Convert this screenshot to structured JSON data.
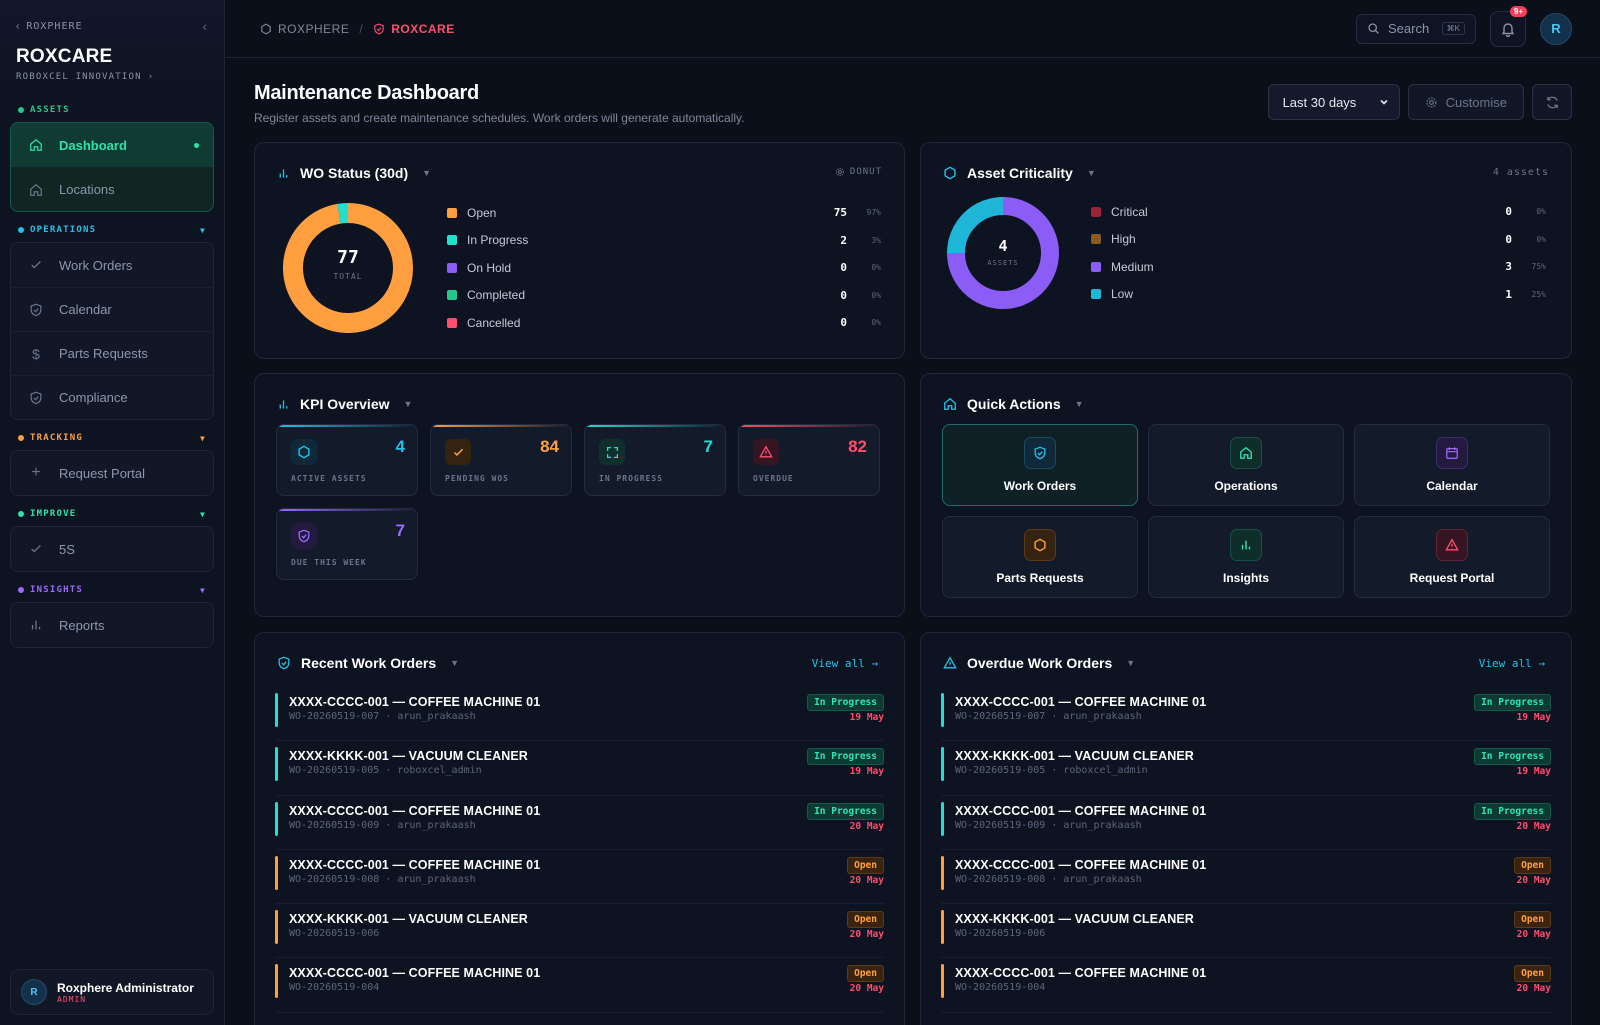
{
  "sidebar": {
    "back_label": "ROXPHERE",
    "brand": "ROXCARE",
    "org": "ROBOXCEL INNOVATION",
    "sections": {
      "assets": {
        "label": "ASSETS",
        "color": "#22c98a",
        "items": [
          {
            "label": "Dashboard"
          },
          {
            "label": "Locations"
          }
        ]
      },
      "operations": {
        "label": "OPERATIONS",
        "color": "#22c1e8",
        "items": [
          {
            "label": "Work Orders"
          },
          {
            "label": "Calendar"
          },
          {
            "label": "Parts Requests"
          },
          {
            "label": "Compliance"
          }
        ]
      },
      "tracking": {
        "label": "TRACKING",
        "color": "#ff9f40",
        "items": [
          {
            "label": "Request Portal"
          }
        ]
      },
      "improve": {
        "label": "IMPROVE",
        "color": "#2ee3a4",
        "items": [
          {
            "label": "5S"
          }
        ]
      },
      "insights": {
        "label": "INSIGHTS",
        "color": "#9b6bff",
        "items": [
          {
            "label": "Reports"
          }
        ]
      }
    },
    "user": {
      "initial": "R",
      "name": "Roxphere Administrator",
      "role": "ADMIN"
    }
  },
  "topbar": {
    "crumb_parent": "ROXPHERE",
    "crumb_current": "ROXCARE",
    "search_label": "Search",
    "search_kbd": "⌘K",
    "notif_badge": "9+",
    "avatar_initial": "R"
  },
  "header": {
    "title": "Maintenance Dashboard",
    "subtitle": "Register assets and create maintenance schedules. Work orders will generate automatically.",
    "range_value": "Last 30 days",
    "customise_label": "Customise"
  },
  "wo_status": {
    "title": "WO Status (30d)",
    "meta": "DONUT",
    "total": "77",
    "total_label": "TOTAL",
    "legend": [
      {
        "name": "Open",
        "value": "75",
        "pct": "97%",
        "color": "#ff9f40"
      },
      {
        "name": "In Progress",
        "value": "2",
        "pct": "3%",
        "color": "#22e0d0"
      },
      {
        "name": "On Hold",
        "value": "0",
        "pct": "0%",
        "color": "#8b5cf6"
      },
      {
        "name": "Completed",
        "value": "0",
        "pct": "0%",
        "color": "#22c98a"
      },
      {
        "name": "Cancelled",
        "value": "0",
        "pct": "0%",
        "color": "#ff4d6d"
      }
    ]
  },
  "asset_criticality": {
    "title": "Asset Criticality",
    "meta": "4 assets",
    "total": "4",
    "total_label": "ASSETS",
    "legend": [
      {
        "name": "Critical",
        "value": "0",
        "pct": "0%",
        "color": "#9b2335"
      },
      {
        "name": "High",
        "value": "0",
        "pct": "0%",
        "color": "#8a5a1f"
      },
      {
        "name": "Medium",
        "value": "3",
        "pct": "75%",
        "color": "#8b5cf6"
      },
      {
        "name": "Low",
        "value": "1",
        "pct": "25%",
        "color": "#1fb6d8"
      }
    ]
  },
  "kpi": {
    "title": "KPI Overview",
    "tiles": [
      {
        "value": "4",
        "label": "ACTIVE ASSETS",
        "color": "#22c1e8"
      },
      {
        "value": "84",
        "label": "PENDING WOS",
        "color": "#ff9f40"
      },
      {
        "value": "7",
        "label": "IN PROGRESS",
        "color": "#22e0d0"
      },
      {
        "value": "82",
        "label": "OVERDUE",
        "color": "#ff4d6d"
      },
      {
        "value": "7",
        "label": "DUE THIS WEEK",
        "color": "#9b6bff"
      }
    ]
  },
  "quick_actions": {
    "title": "Quick Actions",
    "items": [
      {
        "label": "Work Orders"
      },
      {
        "label": "Operations"
      },
      {
        "label": "Calendar"
      },
      {
        "label": "Parts Requests"
      },
      {
        "label": "Insights"
      },
      {
        "label": "Request Portal"
      }
    ]
  },
  "recent_wo": {
    "title": "Recent Work Orders",
    "view_all": "View all →",
    "rows": [
      {
        "title": "XXXX-CCCC-001 — COFFEE MACHINE 01",
        "sub": "WO-20260519-007 · arun_prakaash",
        "status": "In Progress",
        "date": "19 May"
      },
      {
        "title": "XXXX-KKKK-001 — VACUUM CLEANER",
        "sub": "WO-20260519-005 · roboxcel_admin",
        "status": "In Progress",
        "date": "19 May"
      },
      {
        "title": "XXXX-CCCC-001 — COFFEE MACHINE 01",
        "sub": "WO-20260519-009 · arun_prakaash",
        "status": "In Progress",
        "date": "20 May"
      },
      {
        "title": "XXXX-CCCC-001 — COFFEE MACHINE 01",
        "sub": "WO-20260519-008 · arun_prakaash",
        "status": "Open",
        "date": "20 May"
      },
      {
        "title": "XXXX-KKKK-001 — VACUUM CLEANER",
        "sub": "WO-20260519-006",
        "status": "Open",
        "date": "20 May"
      },
      {
        "title": "XXXX-CCCC-001 — COFFEE MACHINE 01",
        "sub": "WO-20260519-004",
        "status": "Open",
        "date": "20 May"
      }
    ]
  },
  "overdue_wo": {
    "title": "Overdue Work Orders",
    "view_all": "View all →",
    "rows": [
      {
        "title": "XXXX-CCCC-001 — COFFEE MACHINE 01",
        "sub": "WO-20260519-007 · arun_prakaash",
        "status": "In Progress",
        "date": "19 May"
      },
      {
        "title": "XXXX-KKKK-001 — VACUUM CLEANER",
        "sub": "WO-20260519-005 · roboxcel_admin",
        "status": "In Progress",
        "date": "19 May"
      },
      {
        "title": "XXXX-CCCC-001 — COFFEE MACHINE 01",
        "sub": "WO-20260519-009 · arun_prakaash",
        "status": "In Progress",
        "date": "20 May"
      },
      {
        "title": "XXXX-CCCC-001 — COFFEE MACHINE 01",
        "sub": "WO-20260519-008 · arun_prakaash",
        "status": "Open",
        "date": "20 May"
      },
      {
        "title": "XXXX-KKKK-001 — VACUUM CLEANER",
        "sub": "WO-20260519-006",
        "status": "Open",
        "date": "20 May"
      },
      {
        "title": "XXXX-CCCC-001 — COFFEE MACHINE 01",
        "sub": "WO-20260519-004",
        "status": "Open",
        "date": "20 May"
      }
    ]
  }
}
